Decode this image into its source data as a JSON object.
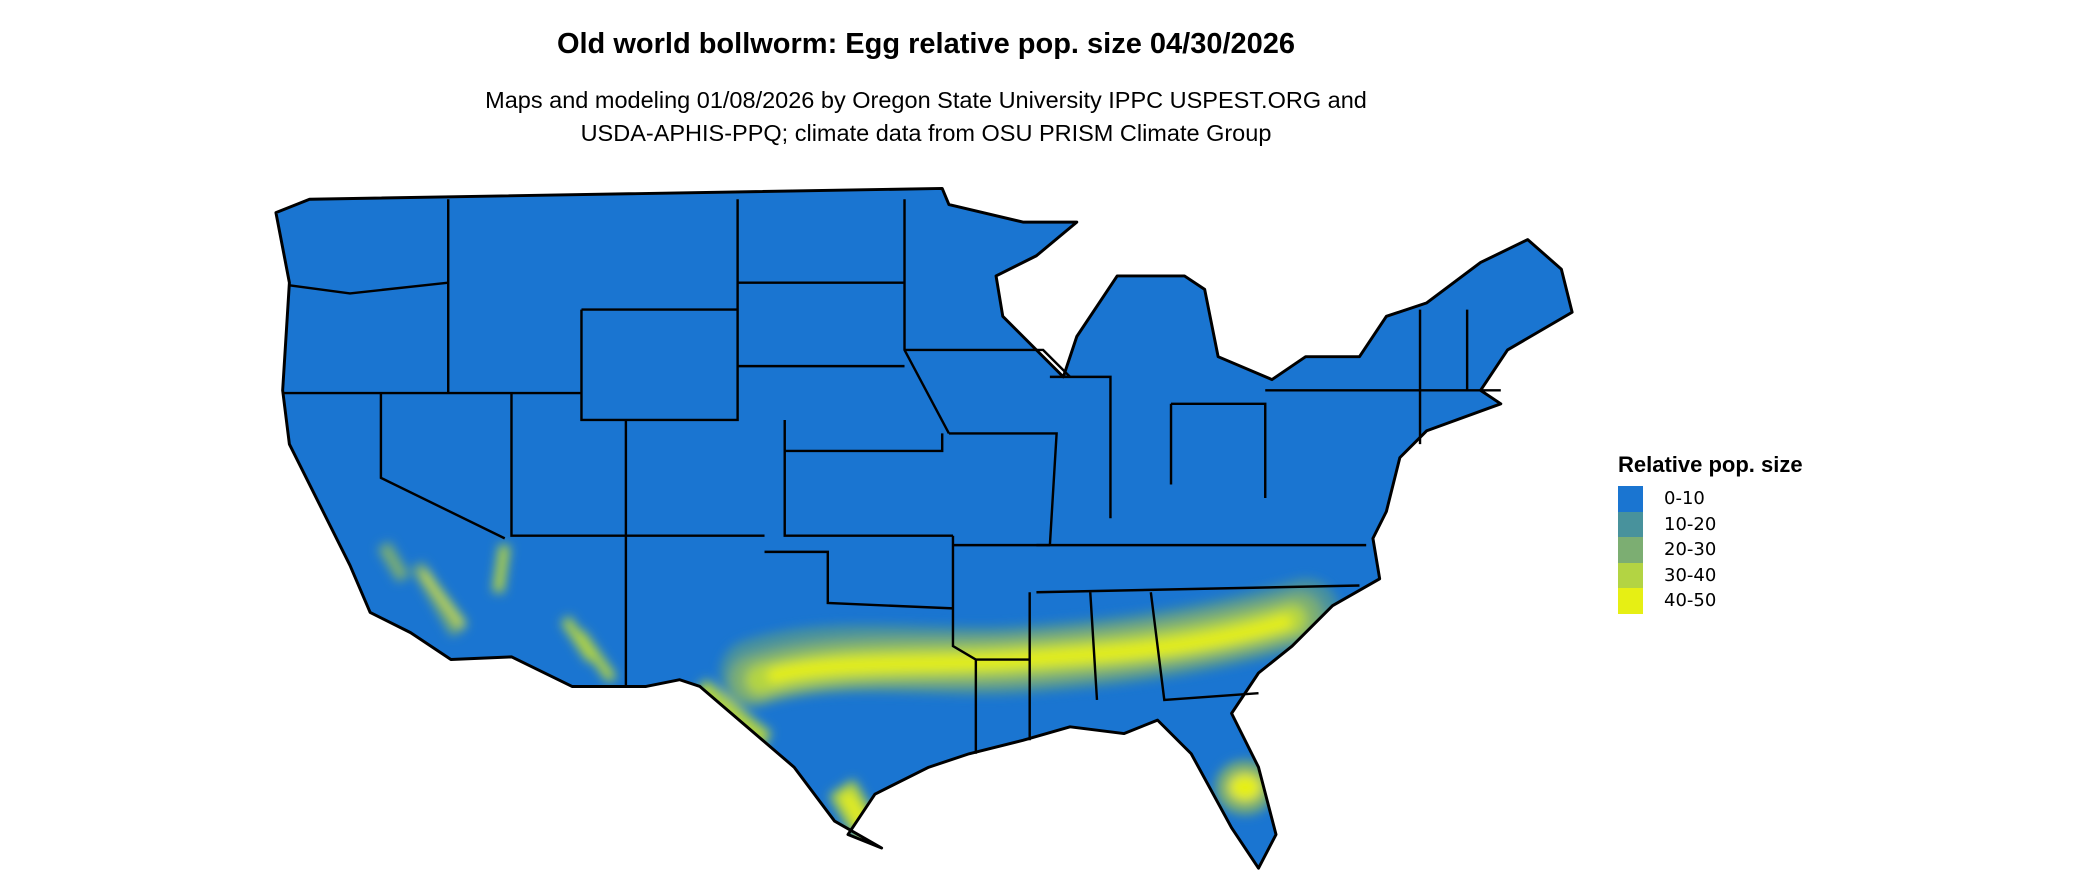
{
  "title": "Old world bollworm: Egg relative pop. size 04/30/2026",
  "subtitle_line1": "Maps and modeling 01/08/2026 by Oregon State University IPPC USPEST.ORG and",
  "subtitle_line2": "USDA-APHIS-PPQ; climate data from OSU PRISM Climate Group",
  "legend": {
    "title": "Relative pop. size",
    "items": [
      {
        "label": "0-10",
        "color": "#1a75d1"
      },
      {
        "label": "10-20",
        "color": "#48929c"
      },
      {
        "label": "20-30",
        "color": "#7cae72"
      },
      {
        "label": "30-40",
        "color": "#b3d443"
      },
      {
        "label": "40-50",
        "color": "#e6ef14"
      }
    ]
  },
  "map": {
    "region": "Contiguous United States",
    "border_color": "#000000",
    "high_pop_regions": [
      "Southern Texas to South Carolina band",
      "Southern Texas coast",
      "Central Florida",
      "Southern Arizona",
      "Southern California"
    ]
  }
}
